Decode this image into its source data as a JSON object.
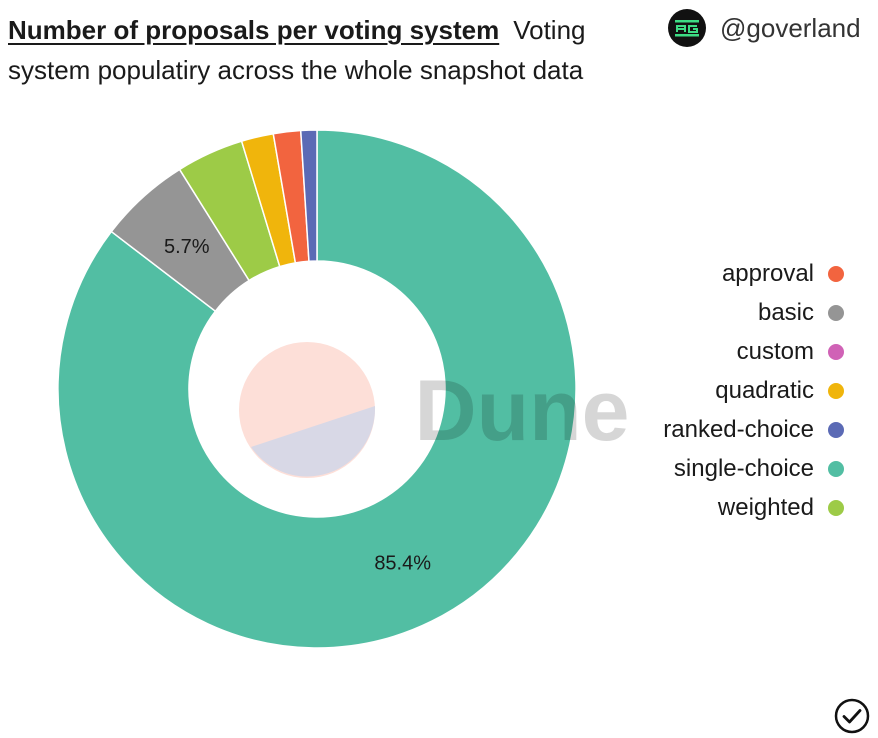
{
  "header": {
    "title": "Number of proposals per voting system",
    "subtitle": "Voting system populatiry across the whole snapshot data"
  },
  "brand": {
    "handle": "@goverland",
    "logo_icon": "goverland-logo-icon"
  },
  "watermark": "Dune",
  "status_icon": "check-circle-icon",
  "chart_data": {
    "type": "pie",
    "donut": true,
    "legend_placement": "right",
    "slices": [
      {
        "name": "single-choice",
        "value": 85.4,
        "color": "#52bea3",
        "label": "85.4%"
      },
      {
        "name": "basic",
        "value": 5.7,
        "color": "#959595",
        "label": "5.7%"
      },
      {
        "name": "weighted",
        "value": 4.2,
        "color": "#9dcb47",
        "label": ""
      },
      {
        "name": "quadratic",
        "value": 2.0,
        "color": "#f0b50c",
        "label": ""
      },
      {
        "name": "approval",
        "value": 1.7,
        "color": "#f2643f",
        "label": ""
      },
      {
        "name": "ranked-choice",
        "value": 1.0,
        "color": "#5b6ab5",
        "label": ""
      },
      {
        "name": "custom",
        "value": 0.0,
        "color": "#d062b6",
        "label": ""
      }
    ],
    "legend": [
      {
        "name": "approval",
        "color": "#f2643f"
      },
      {
        "name": "basic",
        "color": "#959595"
      },
      {
        "name": "custom",
        "color": "#d062b6"
      },
      {
        "name": "quadratic",
        "color": "#f0b50c"
      },
      {
        "name": "ranked-choice",
        "color": "#5b6ab5"
      },
      {
        "name": "single-choice",
        "color": "#52bea3"
      },
      {
        "name": "weighted",
        "color": "#9dcb47"
      }
    ]
  }
}
